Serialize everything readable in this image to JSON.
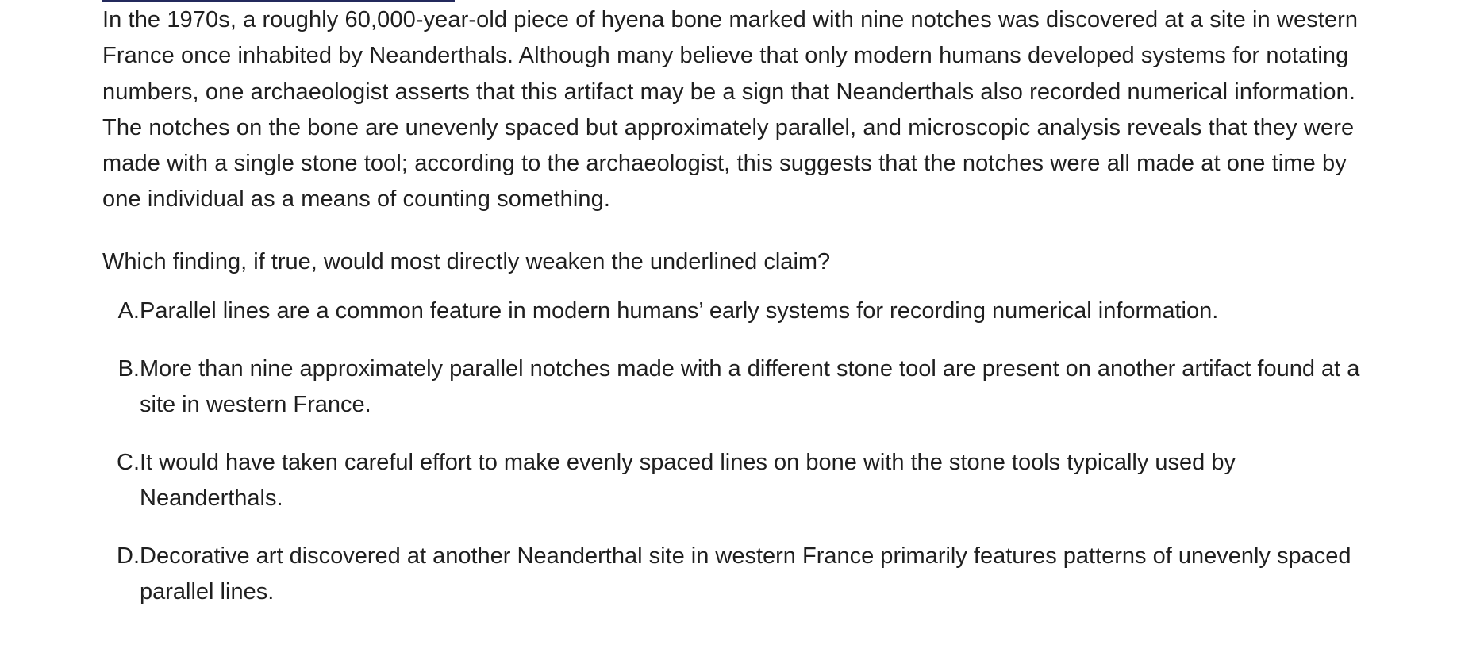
{
  "passage": {
    "text": "In the 1970s, a roughly 60,000-year-old piece of hyena bone marked with nine notches was discovered at a site in western France once inhabited by Neanderthals. Although many believe that only modern humans developed systems for notating numbers, one archaeologist asserts that this artifact may be a sign that Neanderthals also recorded numerical information. The notches on the bone are unevenly spaced but approximately parallel, and microscopic analysis reveals that they were made with a single stone tool; according to the archaeologist, this suggests that the notches were all made at one time by one individual as a means of counting something."
  },
  "question": {
    "text": "Which finding, if true, would most directly weaken the underlined claim?"
  },
  "choices": [
    {
      "letter": "A.",
      "text": "Parallel lines are a common feature in modern humans’ early systems for recording numerical information."
    },
    {
      "letter": "B.",
      "text": "More than nine approximately parallel notches made with a different stone tool are present on another artifact found at a site in western France."
    },
    {
      "letter": "C.",
      "text": "It would have taken careful effort to make evenly spaced lines on bone with the stone tools typically used by Neanderthals."
    },
    {
      "letter": "D.",
      "text": "Decorative art discovered at another Neanderthal site in western France primarily features patterns of unevenly spaced parallel lines."
    }
  ],
  "colors": {
    "text": "#1f1f1f",
    "underline_rule": "#23295c",
    "background": "#ffffff"
  }
}
